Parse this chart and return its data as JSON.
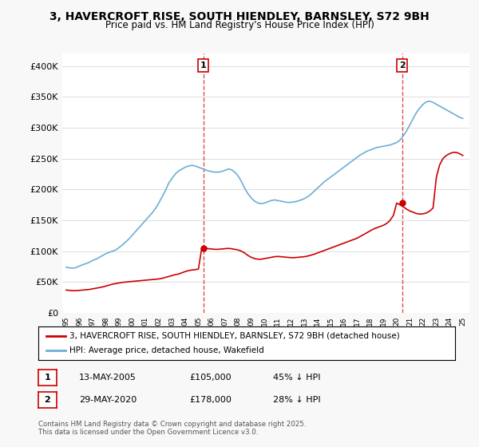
{
  "title_line1": "3, HAVERCROFT RISE, SOUTH HIENDLEY, BARNSLEY, S72 9BH",
  "title_line2": "Price paid vs. HM Land Registry's House Price Index (HPI)",
  "legend_label1": "3, HAVERCROFT RISE, SOUTH HIENDLEY, BARNSLEY, S72 9BH (detached house)",
  "legend_label2": "HPI: Average price, detached house, Wakefield",
  "annotation1_label": "1",
  "annotation1_date": "13-MAY-2005",
  "annotation1_price": "£105,000",
  "annotation1_hpi": "45% ↓ HPI",
  "annotation2_label": "2",
  "annotation2_date": "29-MAY-2020",
  "annotation2_price": "£178,000",
  "annotation2_hpi": "28% ↓ HPI",
  "footer": "Contains HM Land Registry data © Crown copyright and database right 2025.\nThis data is licensed under the Open Government Licence v3.0.",
  "hpi_color": "#6baed6",
  "price_color": "#cc0000",
  "annotation_vline_color": "#cc0000",
  "background_color": "#f8f8f8",
  "plot_bg_color": "#ffffff",
  "ylim": [
    0,
    420000
  ],
  "yticks": [
    0,
    50000,
    100000,
    150000,
    200000,
    250000,
    300000,
    350000,
    400000
  ],
  "year_start": 1995,
  "year_end": 2025,
  "sale1_year": 2005.37,
  "sale1_price": 105000,
  "sale2_year": 2020.41,
  "sale2_price": 178000,
  "hpi_years": [
    1995,
    1995.25,
    1995.5,
    1995.75,
    1996,
    1996.25,
    1996.5,
    1996.75,
    1997,
    1997.25,
    1997.5,
    1997.75,
    1998,
    1998.25,
    1998.5,
    1998.75,
    1999,
    1999.25,
    1999.5,
    1999.75,
    2000,
    2000.25,
    2000.5,
    2000.75,
    2001,
    2001.25,
    2001.5,
    2001.75,
    2002,
    2002.25,
    2002.5,
    2002.75,
    2003,
    2003.25,
    2003.5,
    2003.75,
    2004,
    2004.25,
    2004.5,
    2004.75,
    2005,
    2005.25,
    2005.5,
    2005.75,
    2006,
    2006.25,
    2006.5,
    2006.75,
    2007,
    2007.25,
    2007.5,
    2007.75,
    2008,
    2008.25,
    2008.5,
    2008.75,
    2009,
    2009.25,
    2009.5,
    2009.75,
    2010,
    2010.25,
    2010.5,
    2010.75,
    2011,
    2011.25,
    2011.5,
    2011.75,
    2012,
    2012.25,
    2012.5,
    2012.75,
    2013,
    2013.25,
    2013.5,
    2013.75,
    2014,
    2014.25,
    2014.5,
    2014.75,
    2015,
    2015.25,
    2015.5,
    2015.75,
    2016,
    2016.25,
    2016.5,
    2016.75,
    2017,
    2017.25,
    2017.5,
    2017.75,
    2018,
    2018.25,
    2018.5,
    2018.75,
    2019,
    2019.25,
    2019.5,
    2019.75,
    2020,
    2020.25,
    2020.5,
    2020.75,
    2021,
    2021.25,
    2021.5,
    2021.75,
    2022,
    2022.25,
    2022.5,
    2022.75,
    2023,
    2023.25,
    2023.5,
    2023.75,
    2024,
    2024.25,
    2024.5,
    2024.75,
    2025
  ],
  "hpi_values": [
    74000,
    73000,
    72500,
    73500,
    76000,
    78000,
    80000,
    82000,
    85000,
    87000,
    90000,
    93000,
    96000,
    98000,
    100000,
    102000,
    106000,
    110000,
    115000,
    120000,
    126000,
    132000,
    138000,
    144000,
    150000,
    156000,
    162000,
    169000,
    178000,
    188000,
    198000,
    210000,
    218000,
    225000,
    230000,
    233000,
    236000,
    238000,
    239000,
    238000,
    236000,
    234000,
    232000,
    230000,
    229000,
    228000,
    228000,
    229000,
    231000,
    233000,
    232000,
    228000,
    222000,
    213000,
    202000,
    193000,
    186000,
    181000,
    178000,
    177000,
    178000,
    180000,
    182000,
    183000,
    182000,
    181000,
    180000,
    179000,
    179000,
    180000,
    181000,
    183000,
    185000,
    188000,
    192000,
    197000,
    202000,
    207000,
    212000,
    216000,
    220000,
    224000,
    228000,
    232000,
    236000,
    240000,
    244000,
    248000,
    252000,
    256000,
    259000,
    262000,
    264000,
    266000,
    268000,
    269000,
    270000,
    271000,
    272000,
    274000,
    276000,
    280000,
    287000,
    295000,
    305000,
    315000,
    325000,
    332000,
    338000,
    342000,
    343000,
    341000,
    338000,
    335000,
    332000,
    329000,
    326000,
    323000,
    320000,
    317000,
    315000
  ],
  "price_years": [
    1995,
    1995.25,
    1995.5,
    1995.75,
    1996,
    1996.25,
    1996.5,
    1996.75,
    1997,
    1997.25,
    1997.5,
    1997.75,
    1998,
    1998.25,
    1998.5,
    1998.75,
    1999,
    1999.25,
    1999.5,
    1999.75,
    2000,
    2000.25,
    2000.5,
    2000.75,
    2001,
    2001.25,
    2001.5,
    2001.75,
    2002,
    2002.25,
    2002.5,
    2002.75,
    2003,
    2003.25,
    2003.5,
    2003.75,
    2004,
    2004.25,
    2004.5,
    2004.75,
    2005,
    2005.25,
    2005.5,
    2005.75,
    2006,
    2006.25,
    2006.5,
    2006.75,
    2007,
    2007.25,
    2007.5,
    2007.75,
    2008,
    2008.25,
    2008.5,
    2008.75,
    2009,
    2009.25,
    2009.5,
    2009.75,
    2010,
    2010.25,
    2010.5,
    2010.75,
    2011,
    2011.25,
    2011.5,
    2011.75,
    2012,
    2012.25,
    2012.5,
    2012.75,
    2013,
    2013.25,
    2013.5,
    2013.75,
    2014,
    2014.25,
    2014.5,
    2014.75,
    2015,
    2015.25,
    2015.5,
    2015.75,
    2016,
    2016.25,
    2016.5,
    2016.75,
    2017,
    2017.25,
    2017.5,
    2017.75,
    2018,
    2018.25,
    2018.5,
    2018.75,
    2019,
    2019.25,
    2019.5,
    2019.75,
    2020,
    2020.25,
    2020.5,
    2020.75,
    2021,
    2021.25,
    2021.5,
    2021.75,
    2022,
    2022.25,
    2022.5,
    2022.75,
    2023,
    2023.25,
    2023.5,
    2023.75,
    2024,
    2024.25,
    2024.5,
    2024.75,
    2025
  ],
  "price_values": [
    37000,
    36500,
    36000,
    36000,
    36500,
    37000,
    37500,
    38000,
    39000,
    40000,
    41000,
    42000,
    43500,
    45000,
    46500,
    47500,
    48500,
    49500,
    50000,
    50500,
    51000,
    51500,
    52000,
    52500,
    53000,
    53500,
    54000,
    54500,
    55000,
    56000,
    57500,
    59000,
    60500,
    62000,
    63000,
    65000,
    67000,
    68500,
    69500,
    70000,
    71000,
    105000,
    105500,
    104000,
    103500,
    103000,
    103000,
    103500,
    104000,
    104500,
    104000,
    103000,
    102000,
    100000,
    97000,
    93000,
    90000,
    88000,
    87000,
    87000,
    88000,
    89000,
    90000,
    91000,
    91500,
    91000,
    90500,
    90000,
    89500,
    89500,
    90000,
    90500,
    91000,
    92000,
    93500,
    95000,
    97000,
    99000,
    101000,
    103000,
    105000,
    107000,
    109000,
    111000,
    113000,
    115000,
    117000,
    119000,
    121000,
    124000,
    127000,
    130000,
    133000,
    136000,
    138000,
    140000,
    142000,
    145000,
    150000,
    158000,
    178000,
    175000,
    172000,
    168000,
    165000,
    163000,
    161000,
    160000,
    160500,
    162000,
    165000,
    170000,
    220000,
    240000,
    250000,
    255000,
    258000,
    260000,
    260000,
    258000,
    255000
  ]
}
